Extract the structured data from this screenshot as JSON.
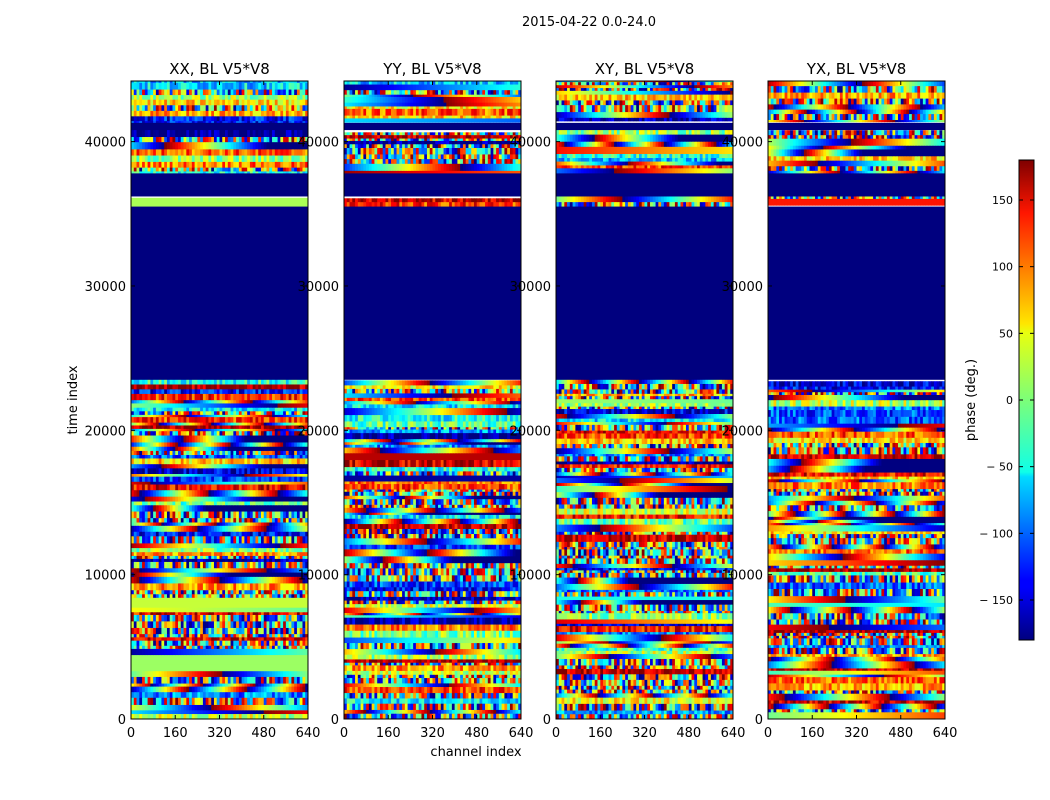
{
  "figure": {
    "suptitle": "2015-04-22 0.0-24.0",
    "xlabel": "channel index",
    "ylabel": "time index",
    "colorbar_label": "phase (deg.)"
  },
  "chart_data": {
    "type": "heatmap",
    "suptitle": "2015-04-22 0.0-24.0",
    "colormap": "jet",
    "x_axis": {
      "label": "channel index",
      "range": [
        0,
        640
      ],
      "ticks": [
        0,
        160,
        320,
        480,
        640
      ]
    },
    "y_axis": {
      "label": "time index",
      "range": [
        0,
        44200
      ],
      "ticks": [
        0,
        10000,
        20000,
        30000,
        40000
      ]
    },
    "colorbar": {
      "label": "phase (deg.)",
      "range": [
        -180,
        180
      ],
      "ticks": [
        150,
        100,
        50,
        0,
        -50,
        -100,
        -150
      ],
      "tick_labels": [
        "150",
        "100",
        "50",
        "0",
        "− 50",
        "− 100",
        "− 150"
      ]
    },
    "panels": [
      {
        "title": "XX, BL V5*V8",
        "flagged_rows": [
          [
            23500,
            35500
          ],
          [
            36200,
            37800
          ],
          [
            40800,
            41300
          ]
        ],
        "uniform_bands": [
          [
            35500,
            36200,
            15
          ],
          [
            3500,
            4500,
            10
          ],
          [
            7800,
            8300,
            25
          ]
        ]
      },
      {
        "title": "YY, BL V5*V8",
        "flagged_rows": [
          [
            23500,
            35500
          ],
          [
            36200,
            37800
          ],
          [
            40800,
            41300
          ]
        ],
        "uniform_bands": [
          [
            16500,
            17000,
            -170
          ],
          [
            18000,
            18600,
            160
          ]
        ]
      },
      {
        "title": "XY, BL V5*V8",
        "flagged_rows": [
          [
            23500,
            35500
          ],
          [
            36200,
            37800
          ],
          [
            40800,
            41300
          ]
        ],
        "uniform_bands": []
      },
      {
        "title": "YX, BL V5*V8",
        "flagged_rows": [
          [
            23500,
            35500
          ],
          [
            36200,
            37800
          ],
          [
            40800,
            41300
          ]
        ],
        "uniform_bands": []
      }
    ]
  },
  "colors": {
    "flagged": "#00007f",
    "axis": "#000000",
    "background": "#ffffff"
  }
}
